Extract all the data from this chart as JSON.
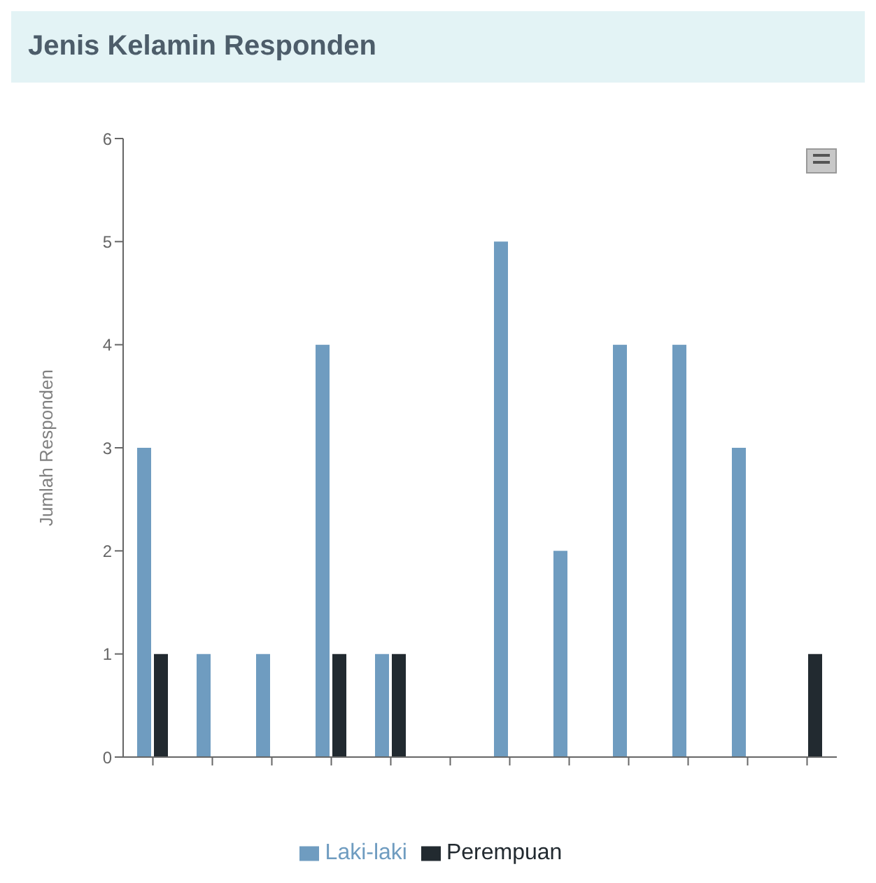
{
  "chart_data": {
    "type": "bar",
    "title": "Jenis Kelamin Responden",
    "ylabel": "Jumlah Responden",
    "categories": [
      null,
      null,
      null,
      null,
      null,
      null,
      null,
      null,
      null,
      null,
      null,
      null
    ],
    "series": [
      {
        "name": "Laki-laki",
        "color": "#6f9cc0",
        "values": [
          3,
          1,
          1,
          4,
          1,
          0,
          5,
          2,
          4,
          4,
          3,
          0
        ]
      },
      {
        "name": "Perempuan",
        "color": "#222a30",
        "values": [
          1,
          0,
          0,
          1,
          1,
          0,
          0,
          0,
          0,
          0,
          0,
          1
        ]
      }
    ],
    "ylim": [
      0,
      6
    ],
    "yticks": [
      0,
      1,
      2,
      3,
      4,
      5,
      6
    ],
    "grid": false,
    "legend": "bottom"
  }
}
